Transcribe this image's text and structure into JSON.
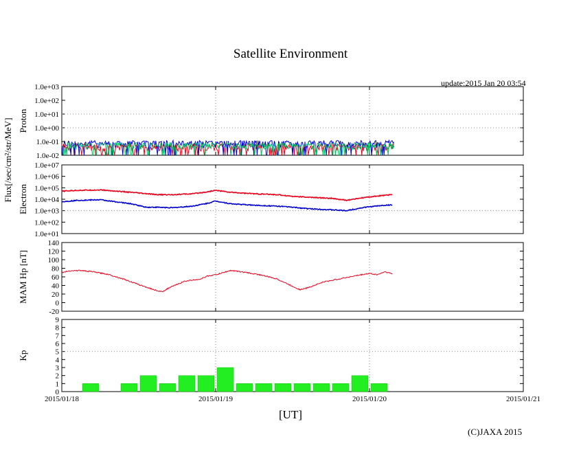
{
  "page": {
    "title": "Satellite Environment",
    "update": "update:2015 Jan 20 03:54",
    "copyright": "(C)JAXA 2015",
    "x_unit": "[UT]"
  },
  "chart_data": [
    {
      "id": "proton",
      "type": "line",
      "ylabel": "Proton",
      "yscale": "log",
      "ylim": [
        0.01,
        1000
      ],
      "ytick_labels": [
        "1.0e-02",
        "1.0e-01",
        "1.0e+00",
        "1.0e+01",
        "1.0e+02",
        "1.0e+03"
      ],
      "grid_y": [
        1.0,
        10.0
      ],
      "series": [
        {
          "name": "Proton channel (red)",
          "color": "#e8001c",
          "level": 0.04
        },
        {
          "name": "Proton channel (blue)",
          "color": "#0000cc",
          "level": 0.07
        },
        {
          "name": "Proton channel (green)",
          "color": "#00c060",
          "level": 0.05
        }
      ]
    },
    {
      "id": "electron",
      "type": "line",
      "ylabel": "Electron",
      "yscale": "log",
      "ylim": [
        10,
        10000000
      ],
      "ytick_labels": [
        "1.0e+01",
        "1.0e+02",
        "1.0e+03",
        "1.0e+04",
        "1.0e+05",
        "1.0e+06",
        "1.0e+07"
      ],
      "grid_y": [
        1000.0
      ],
      "shared_ylabel": "Flux[/sec/cm²/str/MeV]",
      "series": [
        {
          "name": "Electron (red)",
          "color": "#e8001c",
          "t": [
            0.0,
            0.1,
            0.25,
            0.45,
            0.55,
            0.62,
            0.72,
            0.85,
            0.95,
            1.0,
            1.1,
            1.25,
            1.4,
            1.5,
            1.6,
            1.75,
            1.85,
            1.95,
            2.0,
            2.1,
            2.15
          ],
          "v": [
            50000,
            60000,
            65000,
            40000,
            30000,
            25000,
            25000,
            30000,
            45000,
            60000,
            40000,
            30000,
            25000,
            18000,
            15000,
            12000,
            8000,
            13000,
            16000,
            22000,
            25000
          ]
        },
        {
          "name": "Electron (blue)",
          "color": "#0000cc",
          "t": [
            0.0,
            0.1,
            0.25,
            0.45,
            0.55,
            0.62,
            0.72,
            0.85,
            0.95,
            1.0,
            1.1,
            1.25,
            1.4,
            1.5,
            1.6,
            1.75,
            1.85,
            1.95,
            2.0,
            2.1,
            2.15
          ],
          "v": [
            6000,
            8000,
            9000,
            4000,
            2000,
            2000,
            1800,
            2500,
            4500,
            7000,
            4000,
            3000,
            2500,
            2000,
            1500,
            1200,
            1000,
            1800,
            2200,
            3000,
            3200
          ]
        }
      ]
    },
    {
      "id": "mam-hp",
      "type": "line",
      "ylabel": "MAM Hp [nT]",
      "ylim": [
        -20,
        140
      ],
      "ytick_labels": [
        "-20",
        "0",
        "20",
        "40",
        "60",
        "80",
        "100",
        "120",
        "140"
      ],
      "series": [
        {
          "name": "MAM Hp",
          "color": "#e8001c",
          "t": [
            0.0,
            0.05,
            0.12,
            0.2,
            0.3,
            0.4,
            0.5,
            0.6,
            0.65,
            0.7,
            0.8,
            0.9,
            0.95,
            1.0,
            1.1,
            1.2,
            1.3,
            1.4,
            1.5,
            1.55,
            1.6,
            1.7,
            1.8,
            1.9,
            1.95,
            2.0,
            2.05,
            2.1,
            2.15
          ],
          "v": [
            70,
            74,
            75,
            72,
            66,
            55,
            42,
            30,
            25,
            35,
            50,
            55,
            62,
            65,
            75,
            70,
            64,
            55,
            38,
            30,
            35,
            48,
            55,
            62,
            65,
            68,
            65,
            72,
            67
          ]
        }
      ]
    },
    {
      "id": "kp",
      "type": "bar",
      "ylabel": "Kp",
      "ylim": [
        0,
        9
      ],
      "ytick_labels": [
        "0",
        "1",
        "2",
        "3",
        "4",
        "5",
        "6",
        "7",
        "8",
        "9"
      ],
      "grid_y": [
        5
      ],
      "bar_color": "#22ee22",
      "bar_width_hours": 3,
      "bar_start_hours": [
        3,
        9,
        12,
        15,
        18,
        21,
        24,
        27,
        30,
        33,
        36,
        39,
        42,
        45,
        48,
        51
      ],
      "values": [
        1,
        1,
        2,
        1,
        2,
        2,
        3,
        1,
        1,
        1,
        1,
        1,
        1,
        2,
        1,
        0
      ]
    }
  ],
  "x_axis": {
    "range_days": [
      0,
      3
    ],
    "tick_labels": [
      "2015/01/18",
      "2015/01/19",
      "2015/01/20",
      "2015/01/21"
    ],
    "grid_days": [
      1,
      2
    ]
  }
}
